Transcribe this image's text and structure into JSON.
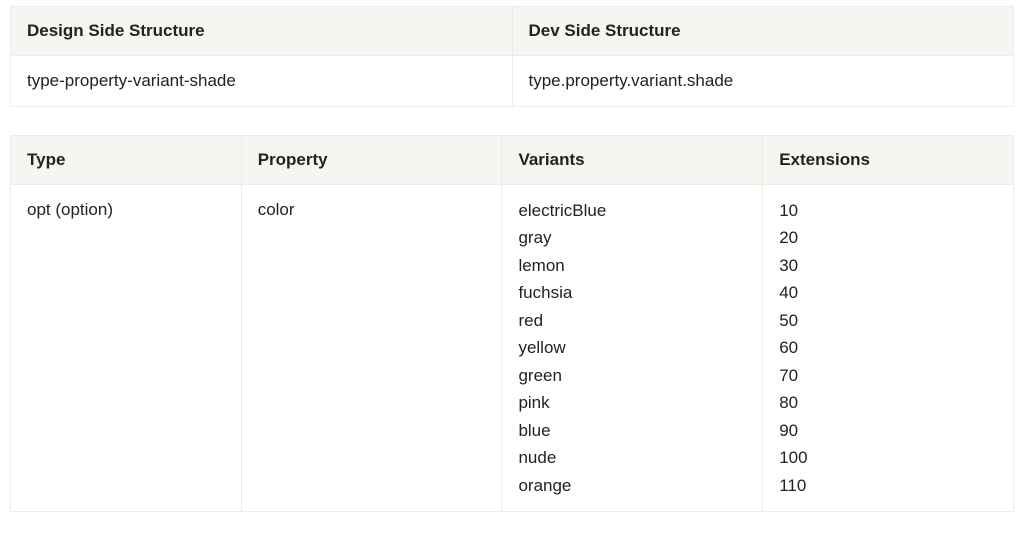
{
  "structureTable": {
    "headers": [
      "Design Side Structure",
      "Dev Side Structure"
    ],
    "row": [
      "type-property-variant-shade",
      "type.property.variant.shade"
    ]
  },
  "detailsTable": {
    "headers": [
      "Type",
      "Property",
      "Variants",
      "Extensions"
    ],
    "type": "opt (option)",
    "property": "color",
    "variants": [
      "electricBlue",
      "gray",
      "lemon",
      "fuchsia",
      "red",
      "yellow",
      "green",
      "pink",
      "blue",
      "nude",
      "orange"
    ],
    "extensions": [
      "10",
      "20",
      "30",
      "40",
      "50",
      "60",
      "70",
      "80",
      "90",
      "100",
      "110"
    ]
  },
  "styling": {
    "header_bg": "#f5f5f2",
    "border_color": "#ebebe8",
    "text_color": "#222222",
    "font_size_header": 17,
    "font_size_cell": 17,
    "font_weight_header": 600
  }
}
